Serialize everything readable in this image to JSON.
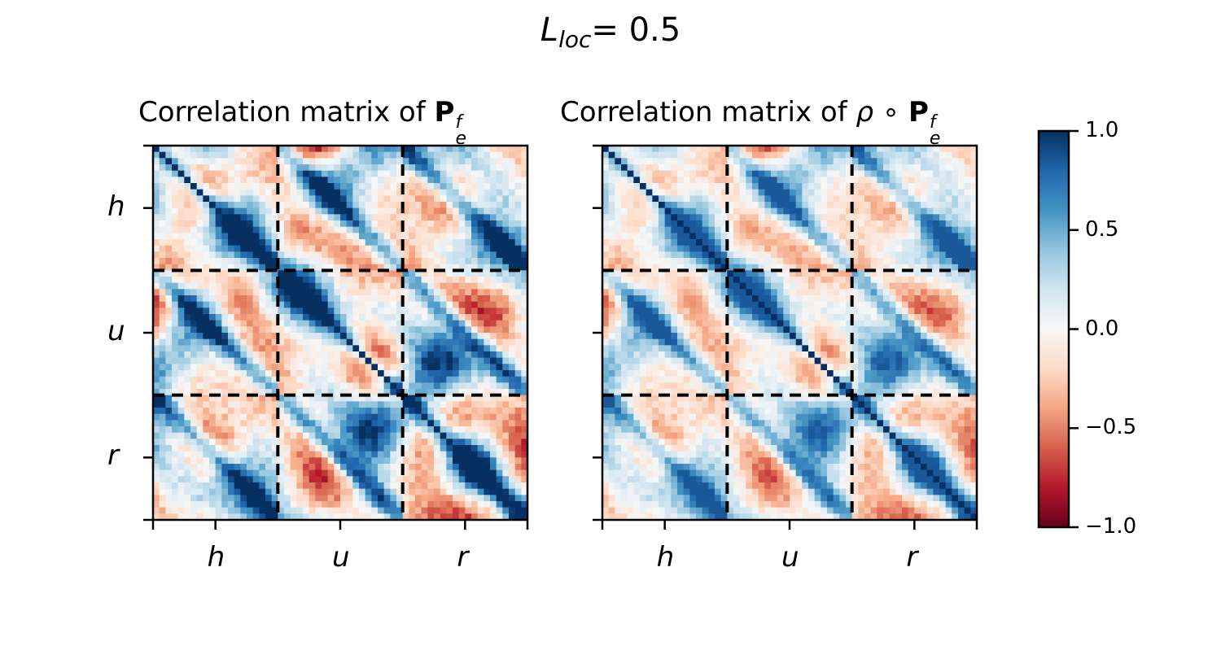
{
  "figure": {
    "suptitle_sym": "L",
    "suptitle_sub": "loc",
    "suptitle_rest": "= 0.5",
    "panels": [
      {
        "title_text": "Correlation matrix of ",
        "title_prefix": "",
        "title_bold": "P",
        "title_sup": "f",
        "title_sub": "e",
        "xticklabels": [
          "h",
          "u",
          "r"
        ],
        "yticklabels": [
          "h",
          "u",
          "r"
        ]
      },
      {
        "title_text": "Correlation matrix of ",
        "title_prefix": "ρ ∘ ",
        "title_bold": "P",
        "title_sup": "f",
        "title_sub": "e",
        "xticklabels": [
          "h",
          "u",
          "r"
        ],
        "yticklabels": []
      }
    ],
    "colorbar": {
      "ticks": [
        "1.0",
        "0.5",
        "0.0",
        "−0.5",
        "−1.0"
      ],
      "colormap": "RdBu",
      "colors": [
        "#67001f",
        "#b2182b",
        "#d6604d",
        "#f4a582",
        "#fddbc7",
        "#f7f7f7",
        "#d1e5f0",
        "#92c5de",
        "#4393c3",
        "#2166ac",
        "#053061"
      ]
    }
  },
  "chart_data": [
    {
      "type": "heatmap",
      "title": "Correlation matrix of P_e^f",
      "variables": [
        "h",
        "u",
        "r"
      ],
      "block_separators": true,
      "vmin": -1.0,
      "vmax": 1.0,
      "diagonal_value": 1.0
    },
    {
      "type": "heatmap",
      "title": "Correlation matrix of ρ ∘ P_e^f",
      "variables": [
        "h",
        "u",
        "r"
      ],
      "block_separators": true,
      "vmin": -1.0,
      "vmax": 1.0,
      "diagonal_value": 1.0
    }
  ]
}
